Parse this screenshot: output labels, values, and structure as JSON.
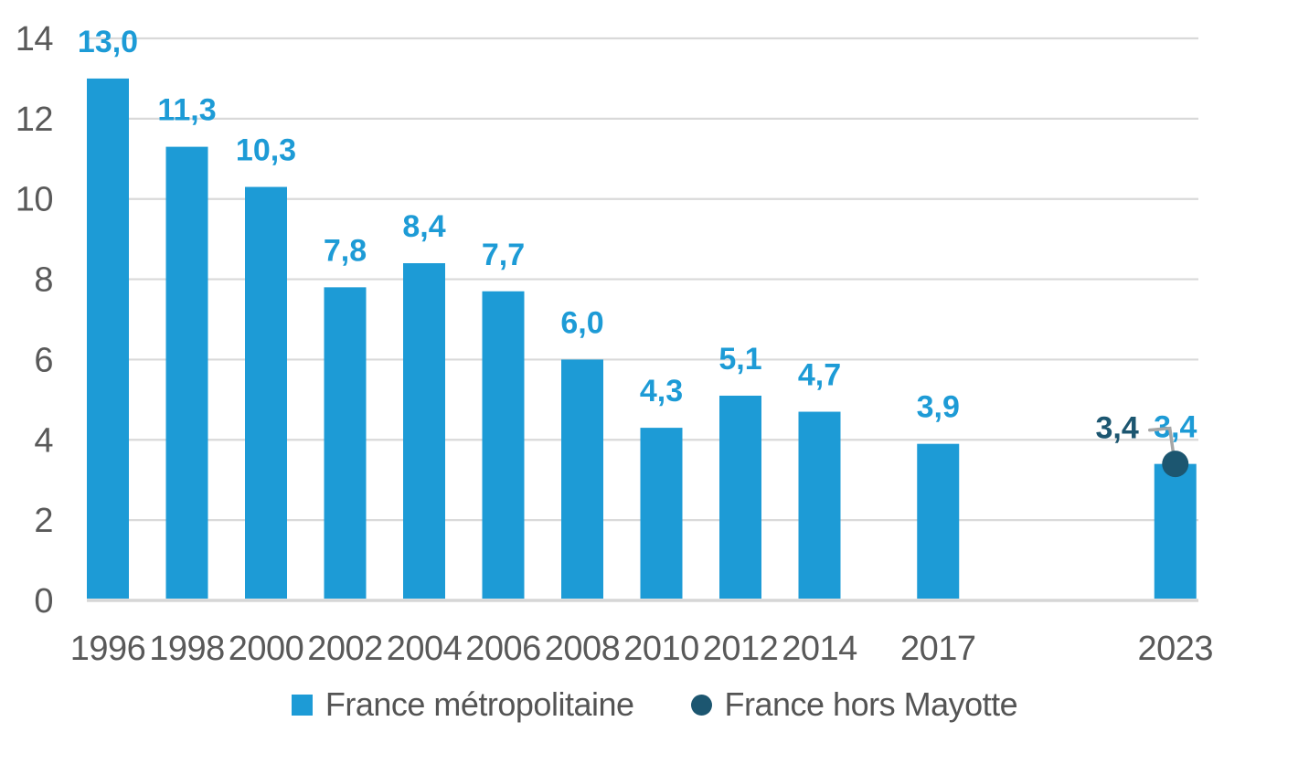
{
  "chart_data": {
    "type": "bar",
    "title": "",
    "categories": [
      "1996",
      "1998",
      "2000",
      "2002",
      "2004",
      "2006",
      "2008",
      "2010",
      "2012",
      "2014",
      "2017",
      "2023"
    ],
    "category_years": [
      1996,
      1998,
      2000,
      2002,
      2004,
      2006,
      2008,
      2010,
      2012,
      2014,
      2017,
      2023
    ],
    "series": [
      {
        "name": "France métropolitaine",
        "type": "bar",
        "marker": "square",
        "color": "#1D9BD6",
        "values": [
          13.0,
          11.3,
          10.3,
          7.8,
          8.4,
          7.7,
          6.0,
          4.3,
          5.1,
          4.7,
          3.9,
          3.4
        ],
        "value_labels": [
          "13,0",
          "11,3",
          "10,3",
          "7,8",
          "8,4",
          "7,7",
          "6,0",
          "4,3",
          "5,1",
          "4,7",
          "3,9",
          "3,4"
        ]
      },
      {
        "name": "France hors Mayotte",
        "type": "point",
        "marker": "circle",
        "color": "#1C5670",
        "x": "2023",
        "x_year": 2023,
        "value": 3.4,
        "value_label": "3,4"
      }
    ],
    "y_axis": {
      "min": 0,
      "max": 14,
      "tick_step": 2,
      "tick_labels": [
        "0",
        "2",
        "4",
        "6",
        "8",
        "10",
        "12",
        "14"
      ]
    },
    "x_axis": {
      "tick_labels": [
        "1996",
        "1998",
        "2000",
        "2002",
        "2004",
        "2006",
        "2008",
        "2010",
        "2012",
        "2014",
        "2017",
        "2023"
      ]
    },
    "grid": true,
    "legend_position": "bottom",
    "decimal_separator": ","
  },
  "colors": {
    "bar_series": "#1D9BD6",
    "point_series": "#1C5670",
    "axis_text": "#595959",
    "legend_text": "#545454",
    "gridline": "#D9D9D9",
    "axis_line": "#D6D6D6",
    "leader_line": "#A6A6A6",
    "background": "#FFFFFF"
  }
}
